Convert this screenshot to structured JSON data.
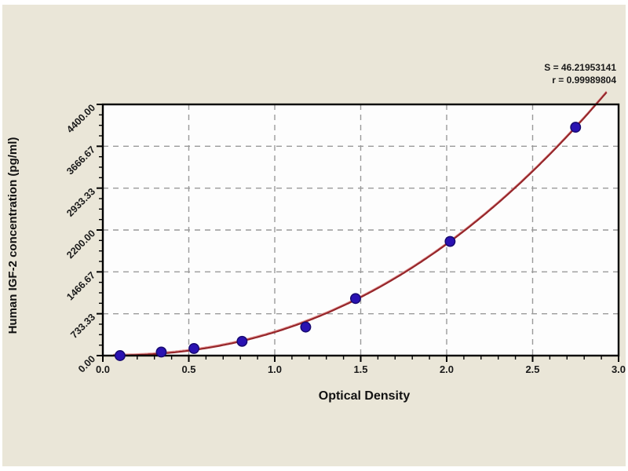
{
  "page": {
    "background_color": "#eae6d8",
    "plot_background_color": "#fdfdfd"
  },
  "chart_data": {
    "type": "scatter",
    "title": "",
    "xlabel": "Optical Density",
    "ylabel": "Human IGF-2 concentration (pg/ml)",
    "xlim": [
      0.0,
      3.0
    ],
    "ylim": [
      0.0,
      4400.0
    ],
    "grid": "dashed gray, at major ticks",
    "legend_position": "none",
    "x_major_ticks": [
      0.0,
      0.5,
      1.0,
      1.5,
      2.0,
      2.5,
      3.0
    ],
    "x_tick_labels": [
      "0.0",
      "0.5",
      "1.0",
      "1.5",
      "2.0",
      "2.5",
      "3.0"
    ],
    "x_minor_step": 0.1,
    "y_major_ticks": [
      0.0,
      733.33,
      1466.67,
      2200.0,
      2933.33,
      3666.67,
      4400.0
    ],
    "y_tick_labels": [
      "0.00",
      "733.33",
      "1466.67",
      "2200.00",
      "2933.33",
      "3666.67",
      "4400.00"
    ],
    "y_minor_divisions": 4,
    "series": [
      {
        "name": "standard-points",
        "type": "scatter",
        "marker": "circle",
        "marker_color": "#2a12b2",
        "marker_edge_color": "#170a70",
        "x": [
          0.1,
          0.34,
          0.53,
          0.81,
          1.18,
          1.47,
          2.02,
          2.75
        ],
        "y": [
          0,
          62.5,
          125,
          250,
          500,
          1000,
          2000,
          4000
        ]
      },
      {
        "name": "fitted-curve",
        "type": "line",
        "color": "#96262a",
        "highlight_color": "#e59b9b",
        "model": "conc = fit_a * (OD / fit_x0) ^ fit_b",
        "fit_a": 4000,
        "fit_x0": 2.75,
        "fit_b": 2.25,
        "x_start": 0.06,
        "x_end": 2.93
      }
    ],
    "annotation": {
      "line1": "S = 46.21953141",
      "line2": "r = 0.99989804"
    },
    "tick_label_color": "#1a1a1a",
    "gridline_color": "#9a9a9a",
    "frame_color": "#000000"
  }
}
